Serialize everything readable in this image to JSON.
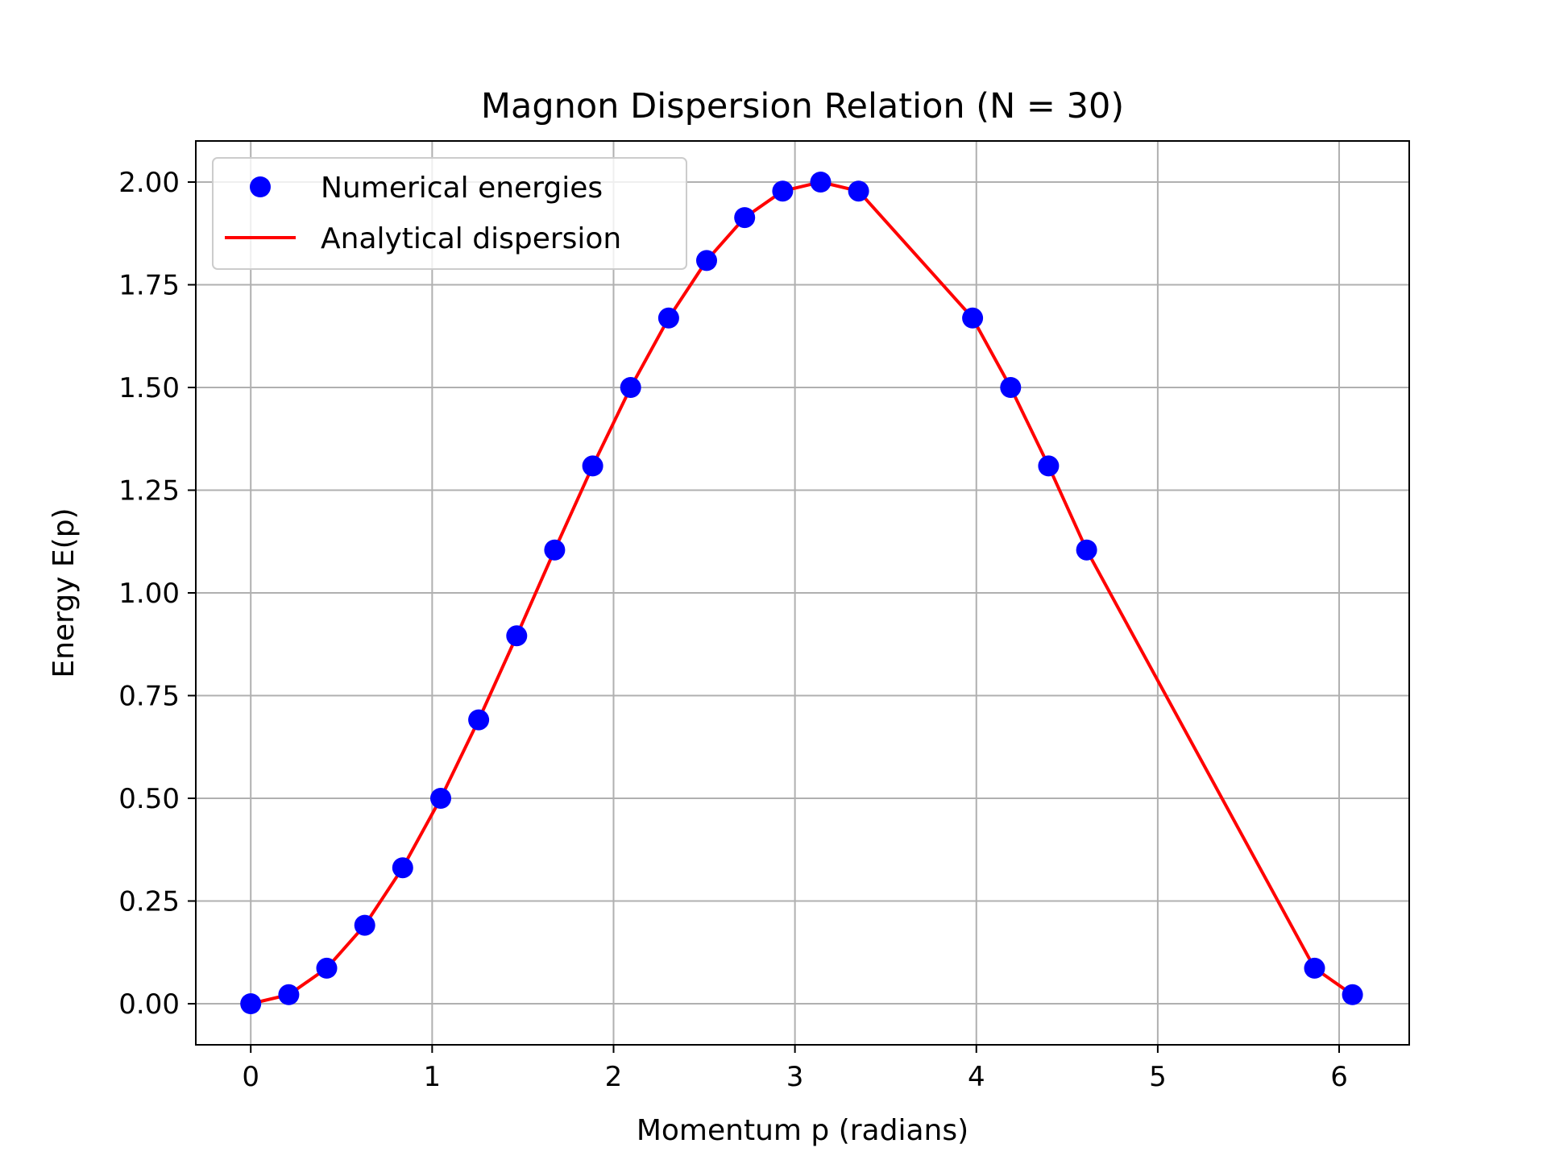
{
  "chart_data": {
    "type": "line",
    "title": "Magnon Dispersion Relation (N = 30)",
    "xlabel": "Momentum p (radians)",
    "ylabel": "Energy E(p)",
    "xlim": [
      -0.303,
      6.3863
    ],
    "ylim": [
      -0.1,
      2.1
    ],
    "x_ticks": [
      {
        "value": 0,
        "label": "0"
      },
      {
        "value": 1,
        "label": "1"
      },
      {
        "value": 2,
        "label": "2"
      },
      {
        "value": 3,
        "label": "3"
      },
      {
        "value": 4,
        "label": "4"
      },
      {
        "value": 5,
        "label": "5"
      },
      {
        "value": 6,
        "label": "6"
      }
    ],
    "y_ticks": [
      {
        "value": 0.0,
        "label": "0.00"
      },
      {
        "value": 0.25,
        "label": "0.25"
      },
      {
        "value": 0.5,
        "label": "0.50"
      },
      {
        "value": 0.75,
        "label": "0.75"
      },
      {
        "value": 1.0,
        "label": "1.00"
      },
      {
        "value": 1.25,
        "label": "1.25"
      },
      {
        "value": 1.5,
        "label": "1.50"
      },
      {
        "value": 1.75,
        "label": "1.75"
      },
      {
        "value": 2.0,
        "label": "2.00"
      }
    ],
    "grid": true,
    "legend_position": "top-left",
    "series": [
      {
        "name": "Numerical energies",
        "kind": "scatter",
        "color": "#0000ff",
        "x": [
          0,
          0.2094,
          0.4189,
          0.6283,
          0.8378,
          1.0472,
          1.2566,
          1.4661,
          1.6755,
          1.885,
          2.0944,
          2.3038,
          2.5133,
          2.7227,
          2.9322,
          3.1416,
          3.351,
          3.9794,
          4.1888,
          4.3982,
          4.6077,
          5.8643,
          6.0737
        ],
        "y": [
          0.0,
          0.0219,
          0.0865,
          0.191,
          0.3309,
          0.5,
          0.691,
          0.8955,
          1.1045,
          1.309,
          1.5,
          1.6691,
          1.809,
          1.9135,
          1.9781,
          2.0,
          1.9781,
          1.6691,
          1.5,
          1.309,
          1.1045,
          0.0865,
          0.0219
        ]
      },
      {
        "name": "Analytical dispersion",
        "kind": "line",
        "color": "#ff0000",
        "x": [
          0,
          0.2094,
          0.4189,
          0.6283,
          0.8378,
          1.0472,
          1.2566,
          1.4661,
          1.6755,
          1.885,
          2.0944,
          2.3038,
          2.5133,
          2.7227,
          2.9322,
          3.1416,
          3.351,
          3.9794,
          4.1888,
          4.3982,
          4.6077,
          5.8643,
          6.0737
        ],
        "y": [
          0.0,
          0.0219,
          0.0865,
          0.191,
          0.3309,
          0.5,
          0.691,
          0.8955,
          1.1045,
          1.309,
          1.5,
          1.6691,
          1.809,
          1.9135,
          1.9781,
          2.0,
          1.9781,
          1.6691,
          1.5,
          1.309,
          1.1045,
          0.0865,
          0.0219
        ]
      }
    ]
  }
}
